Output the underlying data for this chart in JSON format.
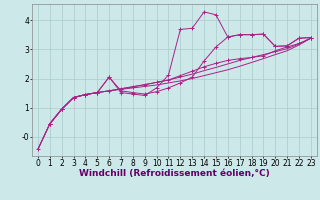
{
  "background_color": "#cce8e8",
  "grid_color": "#aacccc",
  "line_color": "#aa2288",
  "xlabel": "Windchill (Refroidissement éolien,°C)",
  "xlabel_fontsize": 6.5,
  "tick_fontsize": 5.5,
  "xlim": [
    -0.5,
    23.5
  ],
  "ylim": [
    -0.65,
    4.55
  ],
  "xticks": [
    0,
    1,
    2,
    3,
    4,
    5,
    6,
    7,
    8,
    9,
    10,
    11,
    12,
    13,
    14,
    15,
    16,
    17,
    18,
    19,
    20,
    21,
    22,
    23
  ],
  "yticks": [
    0,
    1,
    2,
    3,
    4
  ],
  "ytick_labels": [
    "-0",
    "1",
    "2",
    "3",
    "4"
  ],
  "series": [
    {
      "x": [
        0,
        1,
        2,
        3,
        4,
        5,
        6,
        7,
        8,
        9,
        10,
        11,
        12,
        13,
        14,
        15,
        16,
        17,
        18,
        19,
        20,
        21,
        22,
        23
      ],
      "y": [
        -0.42,
        0.45,
        0.95,
        1.35,
        1.45,
        1.52,
        1.58,
        1.63,
        1.68,
        1.73,
        1.78,
        1.85,
        1.92,
        2.0,
        2.1,
        2.2,
        2.3,
        2.42,
        2.55,
        2.68,
        2.82,
        2.95,
        3.15,
        3.38
      ],
      "marker": null
    },
    {
      "x": [
        0,
        1,
        2,
        3,
        4,
        5,
        6,
        7,
        8,
        9,
        10,
        11,
        12,
        13,
        14,
        15,
        16,
        17,
        18,
        19,
        20,
        21,
        22,
        23
      ],
      "y": [
        -0.42,
        0.45,
        0.95,
        1.35,
        1.45,
        1.52,
        1.58,
        1.65,
        1.72,
        1.79,
        1.87,
        1.95,
        2.05,
        2.15,
        2.27,
        2.38,
        2.5,
        2.62,
        2.72,
        2.82,
        2.92,
        3.02,
        3.18,
        3.38
      ],
      "marker": null
    },
    {
      "x": [
        0,
        1,
        2,
        3,
        4,
        5,
        6,
        7,
        8,
        9,
        10,
        11,
        12,
        13,
        14,
        15,
        16,
        17,
        18,
        19,
        20,
        21,
        22,
        23
      ],
      "y": [
        -0.42,
        0.45,
        0.95,
        1.35,
        1.45,
        1.52,
        1.58,
        1.65,
        1.72,
        1.79,
        1.87,
        1.95,
        2.1,
        2.25,
        2.4,
        2.52,
        2.62,
        2.68,
        2.72,
        2.78,
        2.95,
        3.08,
        3.2,
        3.38
      ],
      "marker": "+"
    },
    {
      "x": [
        1,
        2,
        3,
        4,
        5,
        6,
        7,
        8,
        9,
        10,
        11,
        12,
        13,
        14,
        15,
        16,
        17,
        18,
        19,
        20,
        21,
        22,
        23
      ],
      "y": [
        0.45,
        0.95,
        1.35,
        1.45,
        1.52,
        2.05,
        1.58,
        1.52,
        1.47,
        1.55,
        1.68,
        1.85,
        2.05,
        2.6,
        3.08,
        3.42,
        3.5,
        3.5,
        3.52,
        3.1,
        3.12,
        3.38,
        3.4
      ],
      "marker": "+"
    },
    {
      "x": [
        1,
        2,
        3,
        4,
        5,
        6,
        7,
        8,
        9,
        10,
        11,
        12,
        13,
        14,
        15,
        16,
        17,
        18,
        19,
        20,
        21,
        22,
        23
      ],
      "y": [
        0.45,
        0.95,
        1.35,
        1.45,
        1.52,
        2.05,
        1.52,
        1.47,
        1.42,
        1.68,
        2.12,
        3.68,
        3.72,
        4.28,
        4.18,
        3.42,
        3.5,
        3.5,
        3.52,
        3.1,
        3.12,
        3.38,
        3.4
      ],
      "marker": "+"
    }
  ]
}
